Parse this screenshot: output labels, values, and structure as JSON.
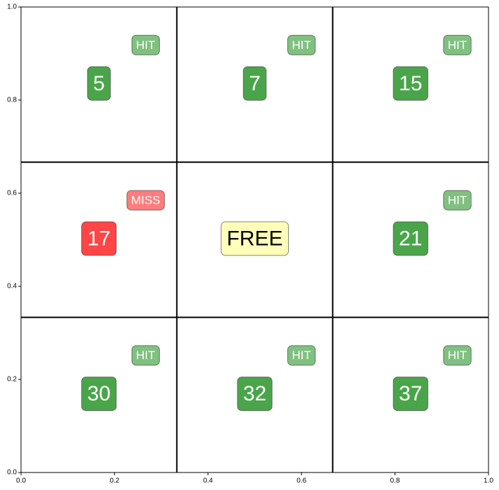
{
  "chart_data": {
    "type": "grid",
    "xlim": [
      0,
      1
    ],
    "ylim": [
      0,
      1
    ],
    "xticks": [
      {
        "value": 0,
        "label": "0.0"
      },
      0.2,
      0.4,
      0.6,
      0.8,
      {
        "value": 1,
        "label": "1.0"
      }
    ],
    "yticks": [
      {
        "value": 0,
        "label": "0.0"
      },
      0.2,
      0.4,
      0.6,
      0.8,
      {
        "value": 1,
        "label": "1.0"
      }
    ],
    "columns": 3,
    "colors": {
      "HIT": "#4aa54a",
      "MISS": "#ff4545",
      "FREE": "#ffffb3"
    },
    "cells": [
      {
        "label": "5",
        "status": "HIT"
      },
      {
        "label": "7",
        "status": "HIT"
      },
      {
        "label": "15",
        "status": "HIT"
      },
      {
        "label": "17",
        "status": "MISS"
      },
      {
        "label": "FREE"
      },
      {
        "label": "21",
        "status": "HIT"
      },
      {
        "label": "30",
        "status": "HIT"
      },
      {
        "label": "32",
        "status": "HIT"
      },
      {
        "label": "37",
        "status": "HIT"
      }
    ]
  }
}
